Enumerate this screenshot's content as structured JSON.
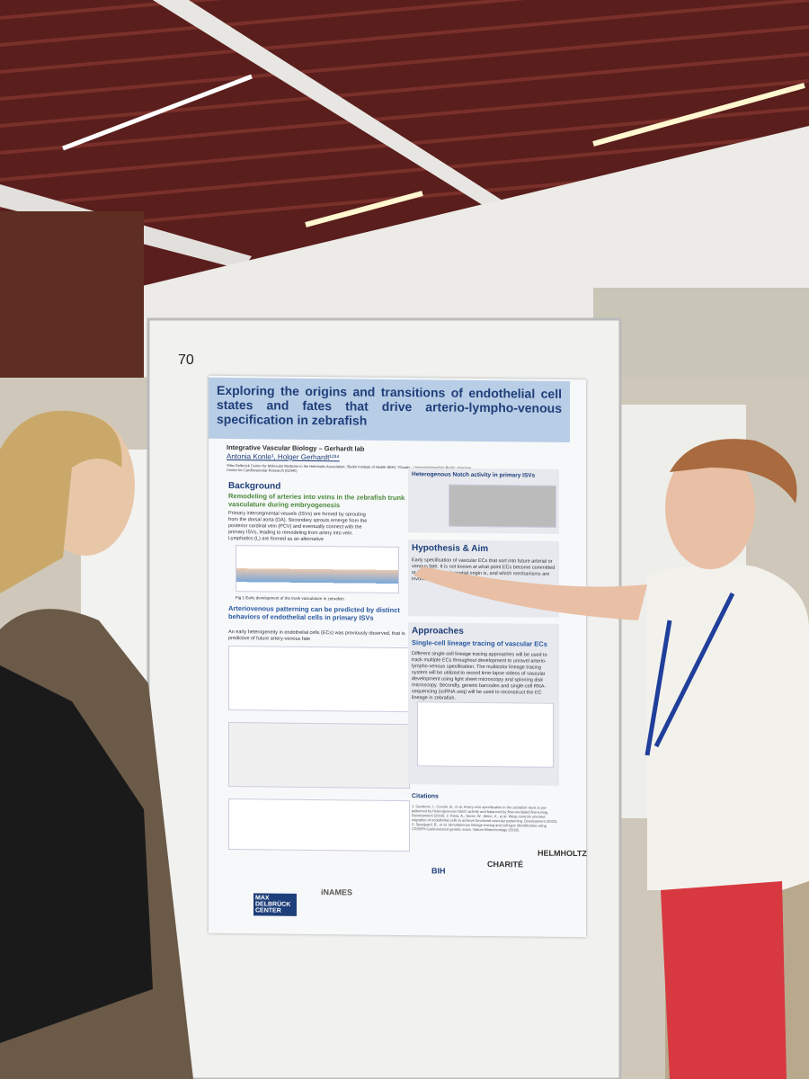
{
  "board_number": "70",
  "poster": {
    "title": "Exploring the origins and transitions of endothelial cell states and fates that drive arterio-lympho-venous specification in zebrafish",
    "lab": "Integrative Vascular Biology – Gerhardt lab",
    "authors": "Antonia Konle¹, Holger Gerhardt¹²³⁴",
    "affiliations": "¹Max Delbrück Center for Molecular Medicine in the Helmholtz Association; ²Berlin Institute of Health (BIH); ³Charité - Universitätsmedizin Berlin; ⁴German Center for Cardiovascular Research (DZHK)",
    "sections": [
      {
        "heading": "Background",
        "subheading": "Remodeling of arteries into veins in the zebrafish trunk vasculature during embryogenesis",
        "body": "Primary intersegmental vessels (ISVs) are formed by sprouting from the dorsal aorta (DA). Secondary sprouts emerge from the posterior cardinal vein (PCV) and eventually connect with the primary ISVs, leading to remodeling from artery into vein. Lymphatics (L) are formed as an alternative",
        "caption": "Fig 1 Early development of the trunk vasculature in zebrafish"
      },
      {
        "subheading": "Arteriovenous patterning can be predicted by distinct behaviors of endothelial cells in primary ISVs",
        "body": "An early heterogeneity in endothelial cells (ECs) was previously observed, that is predictive of future artery-venous fate"
      },
      {
        "heading": "Heterogenous Notch activity in primary ISVs"
      },
      {
        "heading": "Hypothesis & Aim",
        "body": "Early specification of vascular ECs that sort into future arterial or venous fate. It is not known at what point ECs become committed or fated, what their spatial origin is, and which mechanisms are involved in this process."
      },
      {
        "heading": "Approaches",
        "subheading": "Single-cell lineage tracing of vascular ECs",
        "body": "Different single-cell lineage tracing approaches will be used to track multiple ECs throughout development to unravel arterio-lympho-venous specification. The multicolor lineage tracing system will be utilized to record time-lapse videos of vascular development using light sheet microscopy and spinning disk microscopy. Secondly, genetic barcodes and single-cell RNA-sequencing (scRNA-seq) will be used to reconstruct the EC lineage in zebrafish."
      },
      {
        "heading": "Citations",
        "body": "1. Geudens, I., Coxam, B., et al. Artery-vein specification in the zebrafish trunk is pre-patterned by heterogeneous Notch activity and balanced by flow-mediated fine-tuning. Development (2019). 2. Rosa, A., Giese, W., Meier, K., et al. Wasp controls oriented migration of endothelial cells to achieve functional vascular patterning. Development (2022). 3. Spanjaard, B., et al. Simultaneous lineage tracing and cell-type identification using CRISPR-Cas9-induced genetic scars. Nature Biotechnology (2018)."
      }
    ],
    "logos": [
      "MAX DELBRÜCK CENTER",
      "iNAMES",
      "BIH",
      "CHARITÉ",
      "HELMHOLTZ"
    ]
  }
}
